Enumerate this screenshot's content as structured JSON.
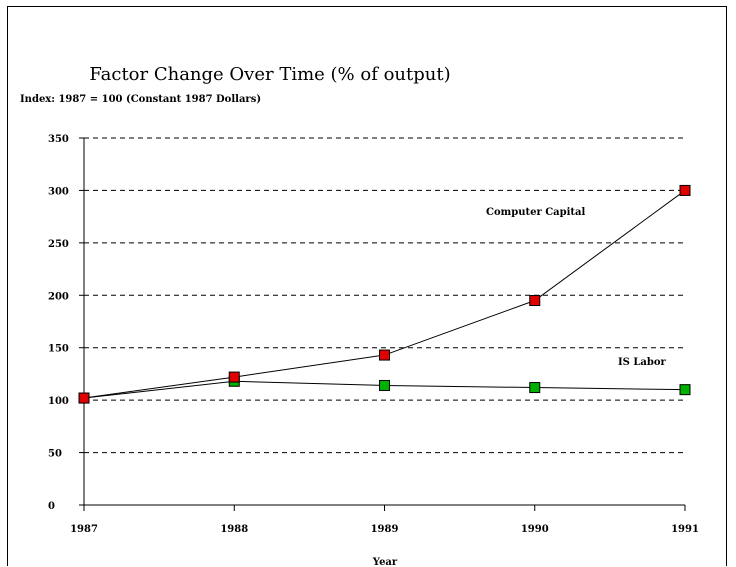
{
  "chart_data": {
    "type": "line",
    "title": "Factor Change Over Time (% of output)",
    "subtitle": "Index: 1987 = 100 (Constant 1987 Dollars)",
    "xlabel": "Year",
    "ylabel": "",
    "x": [
      "1987",
      "1988",
      "1989",
      "1990",
      "1991"
    ],
    "ylim": [
      0,
      350
    ],
    "yticks": [
      0,
      50,
      100,
      150,
      200,
      250,
      300,
      350
    ],
    "grid": true,
    "series": [
      {
        "name": "Computer Capital",
        "values": [
          102,
          122,
          143,
          195,
          300
        ],
        "marker_color": "#e00000"
      },
      {
        "name": "IS Labor",
        "values": [
          102,
          118,
          114,
          112,
          110
        ],
        "marker_color": "#00b000"
      }
    ]
  }
}
